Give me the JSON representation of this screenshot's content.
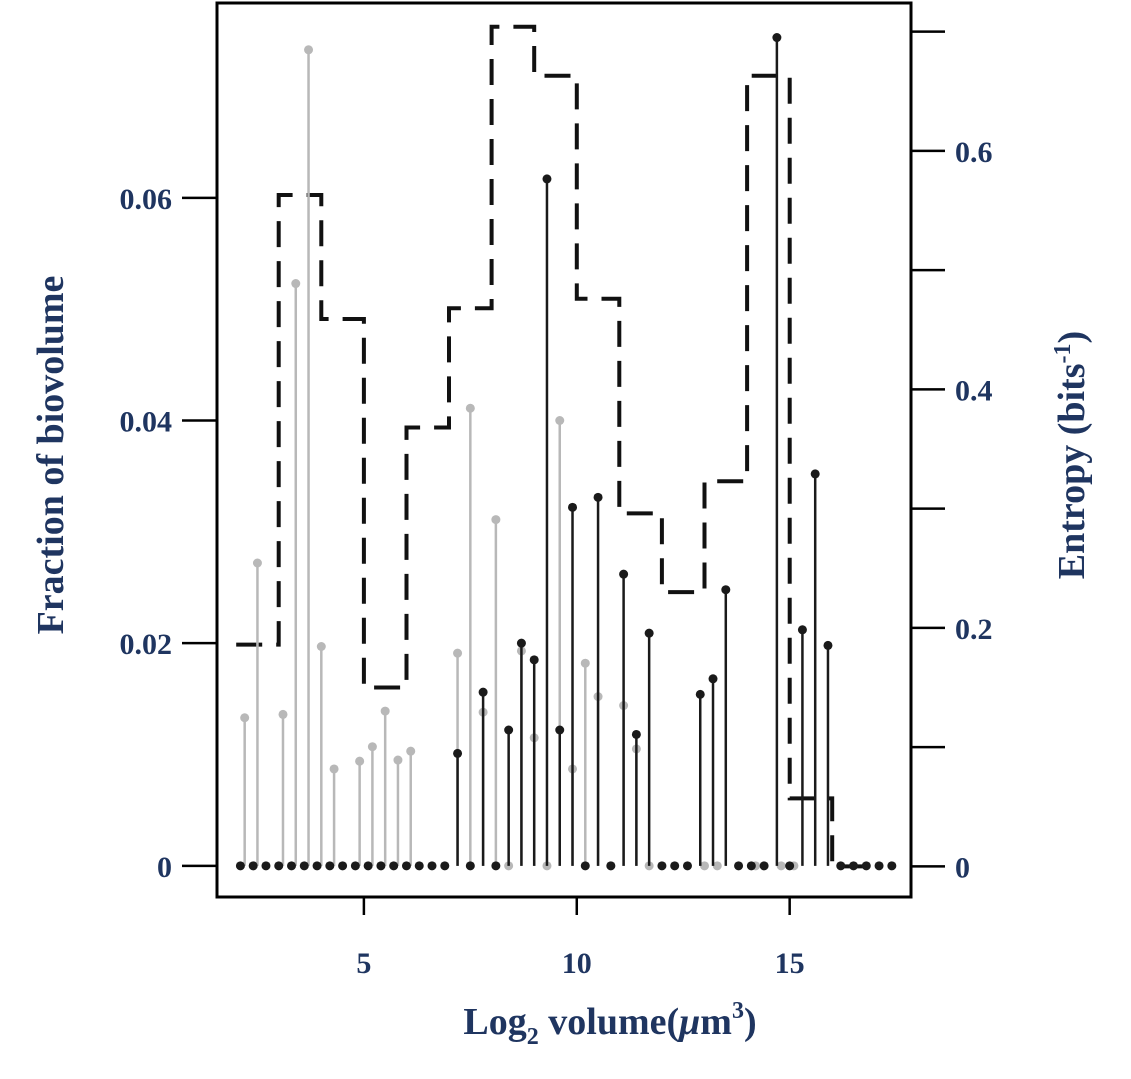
{
  "chart_data": {
    "type": "lollipop-step",
    "xlabel": {
      "main": "Log",
      "sub": "2",
      "rest": " volume(",
      "mu": "μ",
      "unit": "m",
      "sup": "3",
      "close": ")"
    },
    "ylabel_left": "Fraction of biovolume",
    "ylabel_right": {
      "main": "Entropy (bits",
      "sup": "-1",
      "close": ")"
    },
    "xlim": [
      1.55,
      17.85
    ],
    "ylim_left": [
      -0.0028,
      0.0775
    ],
    "ylim_right": [
      -0.0257,
      0.724
    ],
    "x_ticks": [
      5,
      10,
      15
    ],
    "x_tick_labels": [
      "5",
      "10",
      "15"
    ],
    "y_left_ticks": [
      0,
      0.02,
      0.04,
      0.06
    ],
    "y_left_tick_labels": [
      "0",
      "0.02",
      "0.04",
      "0.06"
    ],
    "y_right_ticks": [
      0,
      0.1,
      0.2,
      0.3,
      0.4,
      0.5,
      0.6,
      0.7
    ],
    "y_right_tick_labels": [
      "0",
      "",
      "0.2",
      "",
      "0.4",
      "",
      "0.6",
      ""
    ],
    "colors": {
      "series_gray": "#b8b8b8",
      "series_black": "#1a1a1a",
      "axis_text": "#1f3560"
    },
    "series": [
      {
        "color_key": "series_gray",
        "points": [
          [
            2.2,
            0.0133
          ],
          [
            2.5,
            0.0272
          ],
          [
            3.1,
            0.0136
          ],
          [
            3.4,
            0.0523
          ],
          [
            3.7,
            0.0733
          ],
          [
            4.0,
            0.0197
          ],
          [
            4.3,
            0.0087
          ],
          [
            4.9,
            0.0094
          ],
          [
            5.2,
            0.0107
          ],
          [
            5.5,
            0.0139
          ],
          [
            5.8,
            0.0095
          ],
          [
            6.1,
            0.0103
          ],
          [
            7.2,
            0.0191
          ],
          [
            7.5,
            0.0411
          ],
          [
            7.8,
            0.0138
          ],
          [
            8.1,
            0.0311
          ],
          [
            8.4,
            0.0
          ],
          [
            8.7,
            0.0193
          ],
          [
            9.0,
            0.0115
          ],
          [
            9.3,
            0.0
          ],
          [
            9.6,
            0.04
          ],
          [
            9.9,
            0.0087
          ],
          [
            10.2,
            0.0182
          ],
          [
            10.5,
            0.0152
          ],
          [
            10.8,
            0.0
          ],
          [
            11.1,
            0.0144
          ],
          [
            11.4,
            0.0105
          ],
          [
            11.7,
            0.0
          ],
          [
            13.0,
            0.0
          ],
          [
            13.3,
            0.0
          ],
          [
            14.2,
            0.0
          ],
          [
            14.8,
            0.0
          ],
          [
            15.1,
            0.0
          ]
        ]
      },
      {
        "color_key": "series_black",
        "points": [
          [
            2.1,
            0.0
          ],
          [
            2.4,
            0.0
          ],
          [
            2.7,
            0.0
          ],
          [
            3.0,
            0.0
          ],
          [
            3.3,
            0.0
          ],
          [
            3.6,
            0.0
          ],
          [
            3.9,
            0.0
          ],
          [
            4.2,
            0.0
          ],
          [
            4.5,
            0.0
          ],
          [
            4.8,
            0.0
          ],
          [
            5.1,
            0.0
          ],
          [
            5.4,
            0.0
          ],
          [
            5.7,
            0.0
          ],
          [
            6.0,
            0.0
          ],
          [
            6.3,
            0.0
          ],
          [
            6.6,
            0.0
          ],
          [
            6.9,
            0.0
          ],
          [
            7.2,
            0.0101
          ],
          [
            7.5,
            0.0
          ],
          [
            7.8,
            0.0156
          ],
          [
            8.1,
            0.0
          ],
          [
            8.4,
            0.0122
          ],
          [
            8.7,
            0.02
          ],
          [
            9.0,
            0.0185
          ],
          [
            9.3,
            0.0617
          ],
          [
            9.6,
            0.0122
          ],
          [
            9.9,
            0.0322
          ],
          [
            10.2,
            0.0
          ],
          [
            10.5,
            0.0331
          ],
          [
            10.8,
            0.0
          ],
          [
            11.1,
            0.0262
          ],
          [
            11.4,
            0.0118
          ],
          [
            11.7,
            0.0209
          ],
          [
            12.0,
            0.0
          ],
          [
            12.3,
            0.0
          ],
          [
            12.6,
            0.0
          ],
          [
            12.9,
            0.0154
          ],
          [
            13.2,
            0.0168
          ],
          [
            13.5,
            0.0248
          ],
          [
            13.8,
            0.0
          ],
          [
            14.1,
            0.0
          ],
          [
            14.4,
            0.0
          ],
          [
            14.7,
            0.0744
          ],
          [
            15.0,
            0.0
          ],
          [
            15.3,
            0.0212
          ],
          [
            15.6,
            0.0352
          ],
          [
            15.9,
            0.0198
          ],
          [
            16.2,
            0.0
          ],
          [
            16.5,
            0.0
          ],
          [
            16.8,
            0.0
          ],
          [
            17.1,
            0.0
          ],
          [
            17.4,
            0.0
          ]
        ]
      }
    ],
    "entropy_steps": [
      [
        2,
        3,
        0.186
      ],
      [
        3,
        4,
        0.563
      ],
      [
        4,
        5,
        0.459
      ],
      [
        5,
        6,
        0.15
      ],
      [
        6,
        7,
        0.368
      ],
      [
        7,
        8,
        0.468
      ],
      [
        8,
        9,
        0.704
      ],
      [
        9,
        10,
        0.663
      ],
      [
        10,
        11,
        0.476
      ],
      [
        11,
        12,
        0.296
      ],
      [
        12,
        13,
        0.23
      ],
      [
        13,
        14,
        0.323
      ],
      [
        14,
        15,
        0.663
      ],
      [
        15,
        16,
        0.057
      ],
      [
        16,
        17,
        0.0
      ]
    ]
  }
}
